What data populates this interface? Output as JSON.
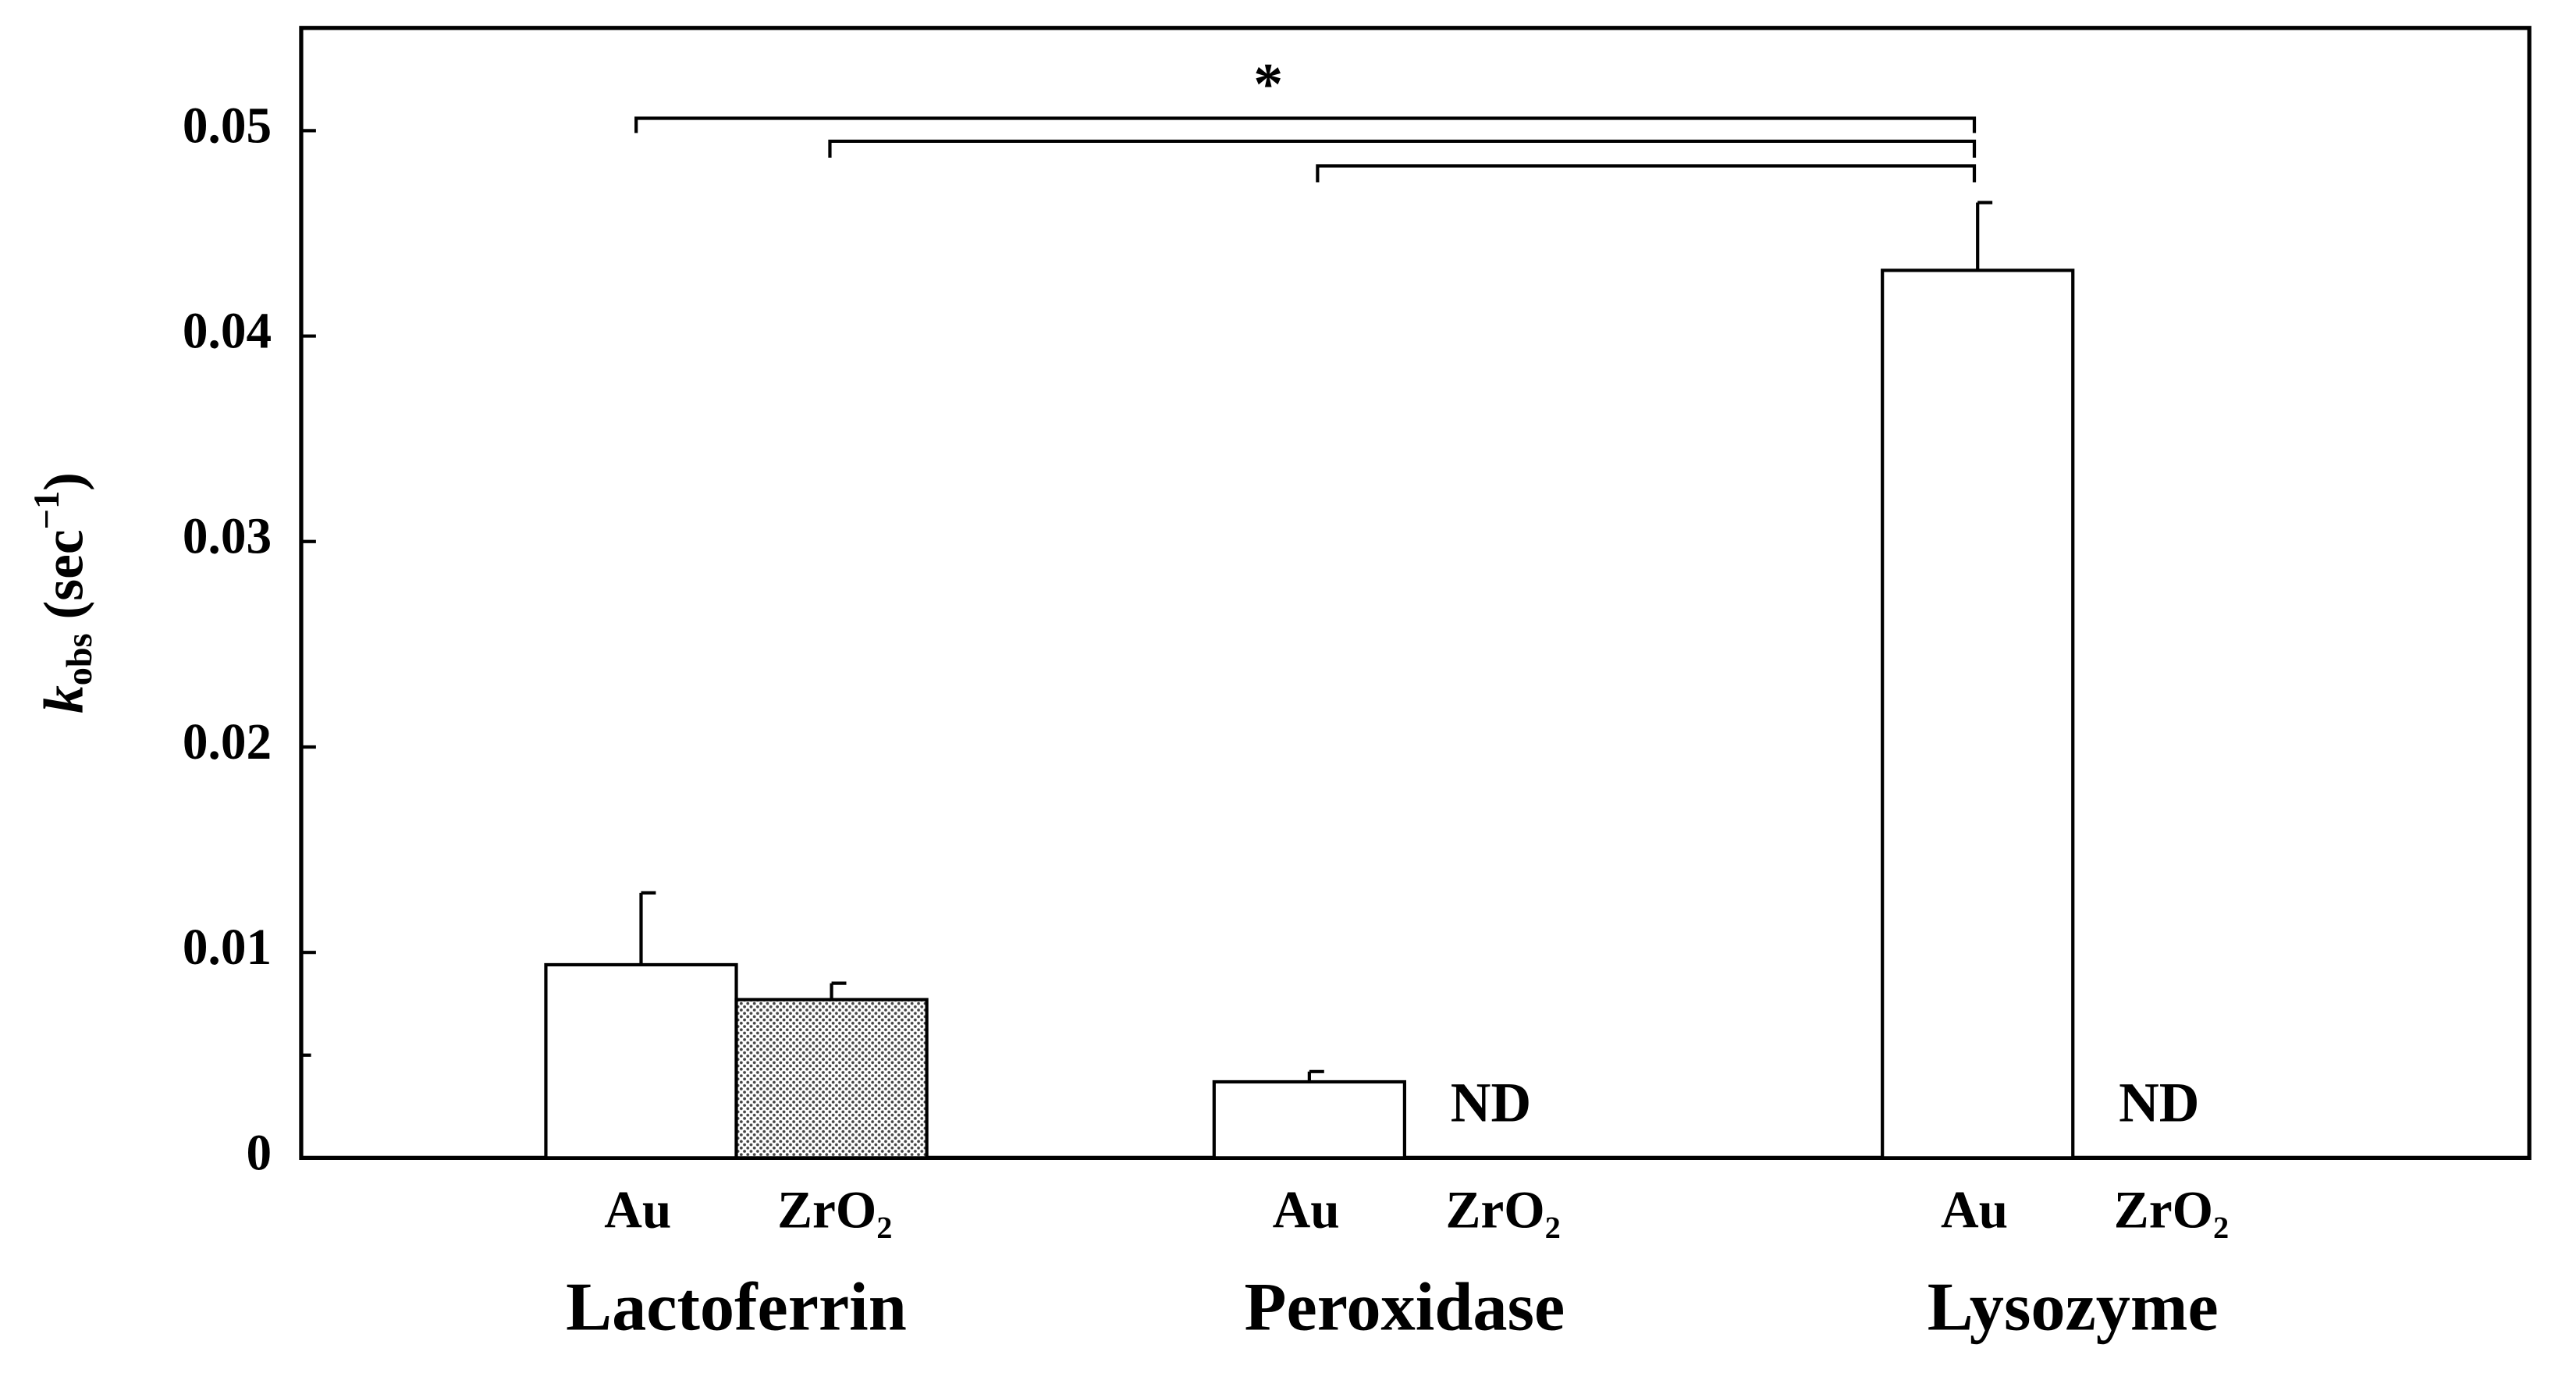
{
  "chart_data": {
    "type": "bar",
    "y_label": [
      "k",
      "obs",
      " (sec",
      "−1",
      ")"
    ],
    "annotation": "*",
    "categories": [
      "Lactoferrin",
      "Peroxidase",
      "Lysozyme"
    ],
    "series": [
      {
        "name": "Au",
        "color": "#ffffff",
        "values": [
          0.0094,
          0.0037,
          0.0432
        ],
        "errors": [
          0.0035,
          0.0005,
          0.0033
        ]
      },
      {
        "name": "ZrO₂",
        "color": "#ffffff",
        "hatch": "dotted",
        "values": [
          0.0077,
          null,
          null
        ],
        "errors": [
          0.0008,
          null,
          null
        ],
        "value_labels": [
          null,
          "ND",
          "ND"
        ]
      }
    ],
    "ylim": [
      0,
      0.055
    ],
    "yticks": [
      0,
      0.01,
      0.02,
      0.03,
      0.04,
      0.05
    ],
    "minor_yticks": [
      0.005
    ]
  }
}
